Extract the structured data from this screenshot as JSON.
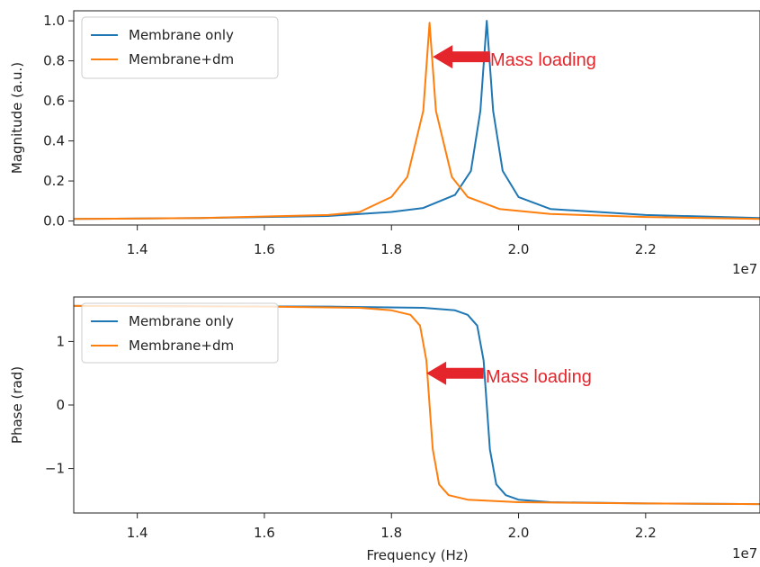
{
  "colors": {
    "membrane_only": "#1f77b4",
    "membrane_dm": "#ff7f0e",
    "annotation": "#e4262c"
  },
  "chart_data": [
    {
      "type": "line",
      "xlabel": "",
      "ylabel": "Magnitude (a.u.)",
      "xlim": [
        13000000.0,
        23800000.0
      ],
      "ylim": [
        -0.02,
        1.05
      ],
      "x_offset_label": "1e7",
      "xticks": [
        14000000.0,
        16000000.0,
        18000000.0,
        20000000.0,
        22000000.0
      ],
      "xtick_labels": [
        "1.4",
        "1.6",
        "1.8",
        "2.0",
        "2.2"
      ],
      "yticks": [
        0.0,
        0.2,
        0.4,
        0.6,
        0.8,
        1.0
      ],
      "ytick_labels": [
        "0.0",
        "0.2",
        "0.4",
        "0.6",
        "0.8",
        "1.0"
      ],
      "legend": "top-left",
      "series": [
        {
          "name": "Membrane only",
          "color": "#1f77b4",
          "x": [
            13000000.0,
            15000000.0,
            17000000.0,
            18000000.0,
            18500000.0,
            19000000.0,
            19250000.0,
            19400000.0,
            19500000.0,
            19600000.0,
            19750000.0,
            20000000.0,
            20500000.0,
            22000000.0,
            23800000.0
          ],
          "values": [
            0.01,
            0.015,
            0.025,
            0.045,
            0.065,
            0.13,
            0.25,
            0.55,
            1.0,
            0.55,
            0.25,
            0.12,
            0.06,
            0.03,
            0.015
          ]
        },
        {
          "name": "Membrane+dm",
          "color": "#ff7f0e",
          "x": [
            13000000.0,
            15000000.0,
            17000000.0,
            17500000.0,
            18000000.0,
            18250000.0,
            18500000.0,
            18600000.0,
            18700000.0,
            18950000.0,
            19200000.0,
            19700000.0,
            20500000.0,
            22000000.0,
            23800000.0
          ],
          "values": [
            0.01,
            0.015,
            0.03,
            0.045,
            0.12,
            0.22,
            0.55,
            0.99,
            0.55,
            0.22,
            0.12,
            0.06,
            0.035,
            0.02,
            0.01
          ]
        }
      ],
      "annotation": {
        "text": "Mass loading",
        "arrow_tip": [
          18650000.0,
          0.82
        ],
        "arrow_tail": [
          19550000.0,
          0.82
        ]
      }
    },
    {
      "type": "line",
      "xlabel": "Frequency (Hz)",
      "ylabel": "Phase (rad)",
      "xlim": [
        13000000.0,
        23800000.0
      ],
      "ylim": [
        -1.7,
        1.7
      ],
      "x_offset_label": "1e7",
      "xticks": [
        14000000.0,
        16000000.0,
        18000000.0,
        20000000.0,
        22000000.0
      ],
      "xtick_labels": [
        "1.4",
        "1.6",
        "1.8",
        "2.0",
        "2.2"
      ],
      "yticks": [
        -1,
        0,
        1
      ],
      "ytick_labels": [
        "−1",
        "0",
        "1"
      ],
      "legend": "top-left",
      "series": [
        {
          "name": "Membrane only",
          "color": "#1f77b4",
          "x": [
            13000000.0,
            17000000.0,
            18500000.0,
            19000000.0,
            19200000.0,
            19350000.0,
            19450000.0,
            19500000.0,
            19550000.0,
            19650000.0,
            19800000.0,
            20000000.0,
            20500000.0,
            22000000.0,
            23800000.0
          ],
          "values": [
            1.56,
            1.55,
            1.53,
            1.49,
            1.42,
            1.25,
            0.7,
            0.0,
            -0.7,
            -1.25,
            -1.42,
            -1.49,
            -1.53,
            -1.55,
            -1.56
          ]
        },
        {
          "name": "Membrane+dm",
          "color": "#ff7f0e",
          "x": [
            13000000.0,
            16000000.0,
            17500000.0,
            18000000.0,
            18300000.0,
            18450000.0,
            18550000.0,
            18600000.0,
            18650000.0,
            18750000.0,
            18900000.0,
            19200000.0,
            20000000.0,
            22000000.0,
            23800000.0
          ],
          "values": [
            1.56,
            1.55,
            1.53,
            1.49,
            1.42,
            1.25,
            0.7,
            0.0,
            -0.7,
            -1.25,
            -1.42,
            -1.49,
            -1.53,
            -1.55,
            -1.56
          ]
        }
      ],
      "annotation": {
        "text": "Mass loading",
        "arrow_tip": [
          18550000.0,
          0.5
        ],
        "arrow_tail": [
          19450000.0,
          0.5
        ]
      }
    }
  ]
}
